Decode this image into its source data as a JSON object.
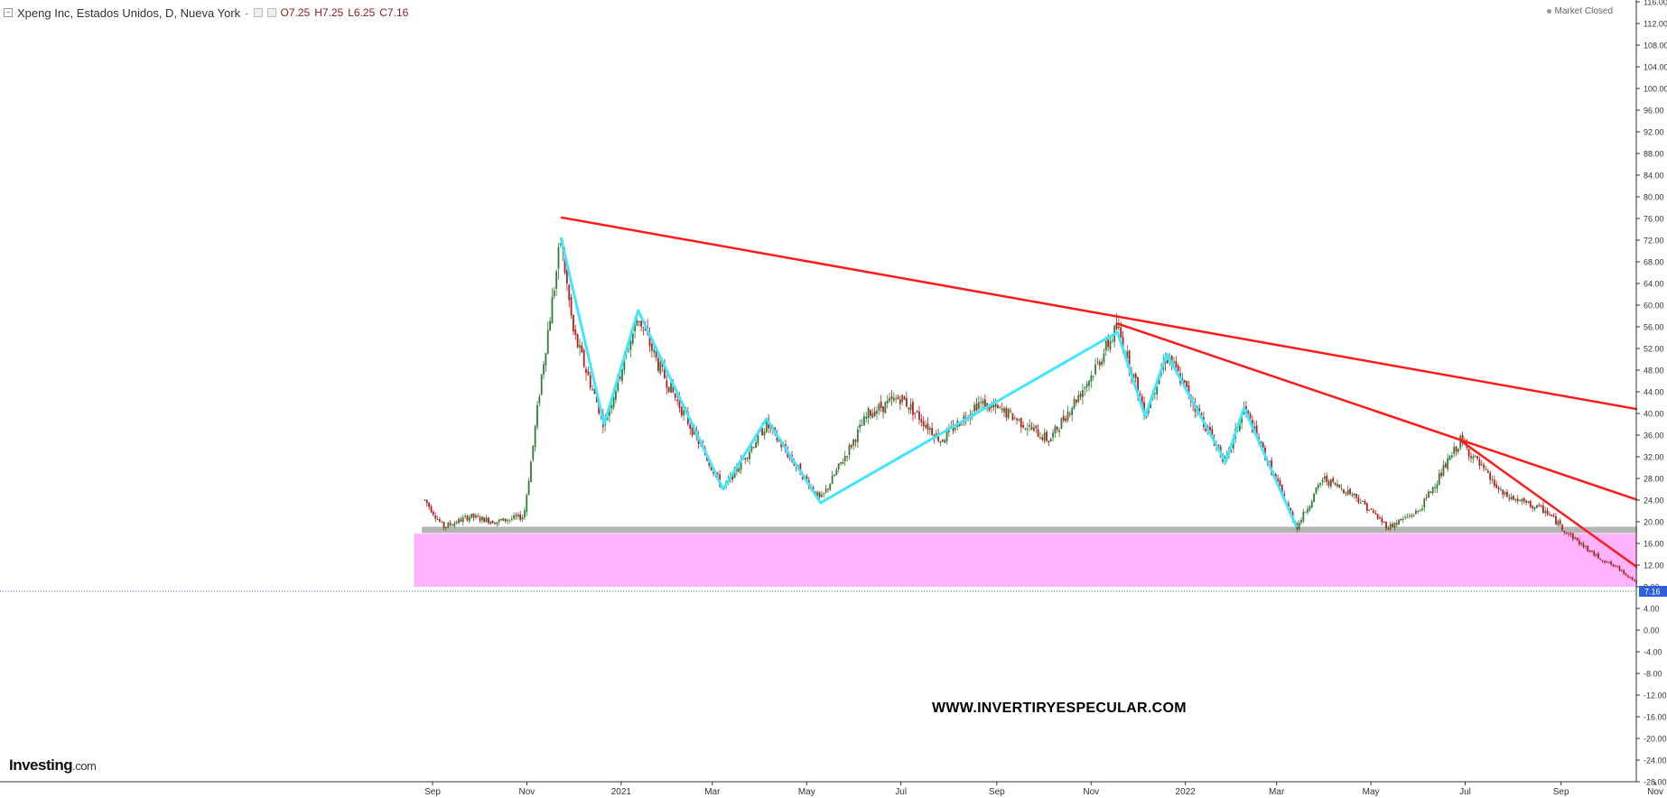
{
  "header": {
    "symbol": "Xpeng Inc, Estados Unidos, D, Nueva York",
    "separator": "-",
    "open": "O7.25",
    "high": "H7.25",
    "low": "L6.25",
    "close": "C7.16"
  },
  "status": {
    "label": "Market Closed"
  },
  "logo": {
    "brand": "Investing",
    "suffix": ".com"
  },
  "watermark": "WWW.INVERTIRYESPECULAR.COM",
  "colors": {
    "up_candle": "#2e7d32",
    "down_candle": "#b71c1c",
    "trendline": "#ff1a1a",
    "zigzag": "#3fe6ff",
    "support_zone": "#ffb3ff",
    "support_line": "#b5b5b5",
    "price_tag": "#2f5fd6"
  },
  "chart_data": {
    "type": "candlestick",
    "title": "",
    "xlabel": "",
    "ylabel": "",
    "ylim": [
      -28,
      116
    ],
    "y_ticks": [
      "116.00",
      "112.00",
      "108.00",
      "104.00",
      "100.00",
      "96.00",
      "92.00",
      "88.00",
      "84.00",
      "80.00",
      "76.00",
      "72.00",
      "68.00",
      "64.00",
      "60.00",
      "56.00",
      "52.00",
      "48.00",
      "44.00",
      "40.00",
      "36.00",
      "32.00",
      "28.00",
      "24.00",
      "20.00",
      "16.00",
      "12.00",
      "8.00",
      "4.00",
      "0.00",
      "-4.00",
      "-8.00",
      "-12.00",
      "-16.00",
      "-20.00",
      "-24.00",
      "-28.00"
    ],
    "x_ticks": [
      {
        "date": "2020-09-01",
        "label": "Sep"
      },
      {
        "date": "2020-11-01",
        "label": "Nov"
      },
      {
        "date": "2021-01-01",
        "label": "2021"
      },
      {
        "date": "2021-03-01",
        "label": "Mar"
      },
      {
        "date": "2021-05-01",
        "label": "May"
      },
      {
        "date": "2021-07-01",
        "label": "Jul"
      },
      {
        "date": "2021-09-01",
        "label": "Sep"
      },
      {
        "date": "2021-11-01",
        "label": "Nov"
      },
      {
        "date": "2022-01-01",
        "label": "2022"
      },
      {
        "date": "2022-03-01",
        "label": "Mar"
      },
      {
        "date": "2022-05-01",
        "label": "May"
      },
      {
        "date": "2022-07-01",
        "label": "Jul"
      },
      {
        "date": "2022-09-01",
        "label": "Sep"
      },
      {
        "date": "2022-11-01",
        "label": "Nov"
      }
    ],
    "last_price": 7.16,
    "last_price_label": "7.16",
    "price_path": [
      [
        "2020-08-27",
        24.0
      ],
      [
        "2020-09-08",
        19.0
      ],
      [
        "2020-09-25",
        21.0
      ],
      [
        "2020-10-12",
        20.0
      ],
      [
        "2020-10-30",
        21.0
      ],
      [
        "2020-11-05",
        34.0
      ],
      [
        "2020-11-10",
        46.0
      ],
      [
        "2020-11-23",
        72.0
      ],
      [
        "2020-12-01",
        55.0
      ],
      [
        "2020-12-21",
        38.0
      ],
      [
        "2021-01-12",
        58.0
      ],
      [
        "2021-01-25",
        49.0
      ],
      [
        "2021-03-08",
        26.0
      ],
      [
        "2021-04-05",
        38.0
      ],
      [
        "2021-05-10",
        24.0
      ],
      [
        "2021-06-10",
        40.0
      ],
      [
        "2021-07-01",
        43.0
      ],
      [
        "2021-07-27",
        35.0
      ],
      [
        "2021-08-20",
        42.0
      ],
      [
        "2021-09-08",
        40.0
      ],
      [
        "2021-10-05",
        35.0
      ],
      [
        "2021-11-01",
        47.0
      ],
      [
        "2021-11-18",
        56.0
      ],
      [
        "2021-12-06",
        40.0
      ],
      [
        "2021-12-20",
        51.0
      ],
      [
        "2022-01-27",
        31.0
      ],
      [
        "2022-02-08",
        41.0
      ],
      [
        "2022-03-14",
        19.0
      ],
      [
        "2022-03-31",
        28.0
      ],
      [
        "2022-04-20",
        25.0
      ],
      [
        "2022-05-12",
        19.0
      ],
      [
        "2022-06-01",
        22.0
      ],
      [
        "2022-06-28",
        35.0
      ],
      [
        "2022-07-25",
        25.0
      ],
      [
        "2022-08-22",
        22.0
      ],
      [
        "2022-09-05",
        18.0
      ],
      [
        "2022-09-22",
        14.0
      ],
      [
        "2022-10-10",
        11.0
      ],
      [
        "2022-10-27",
        7.16
      ]
    ],
    "annotations": {
      "trendlines": [
        {
          "start": [
            "2020-11-23",
            76.2
          ],
          "end": [
            "2022-11-01",
            40.2
          ]
        },
        {
          "start": [
            "2021-11-18",
            56.6
          ],
          "end": [
            "2022-11-25",
            20.6
          ]
        },
        {
          "start": [
            "2022-06-28",
            35.0
          ],
          "end": [
            "2022-11-01",
            9.2
          ]
        }
      ],
      "zigzag": [
        [
          "2020-11-23",
          72.5
        ],
        [
          "2020-12-21",
          38.0
        ],
        [
          "2021-01-12",
          59.0
        ],
        [
          "2021-03-08",
          26.0
        ],
        [
          "2021-04-05",
          39.0
        ],
        [
          "2021-05-10",
          23.5
        ],
        [
          "2021-11-18",
          55.0
        ],
        [
          "2021-12-06",
          39.5
        ],
        [
          "2021-12-20",
          51.0
        ],
        [
          "2022-01-27",
          31.0
        ],
        [
          "2022-02-08",
          41.0
        ],
        [
          "2022-03-14",
          19.0
        ]
      ],
      "support_zone": {
        "start": "2020-08-20",
        "end": "2022-11-10",
        "top": 17.8,
        "bottom": 8.0
      },
      "support_line": {
        "start": "2020-08-25",
        "end": "2022-11-10",
        "value": 18.5
      }
    }
  }
}
